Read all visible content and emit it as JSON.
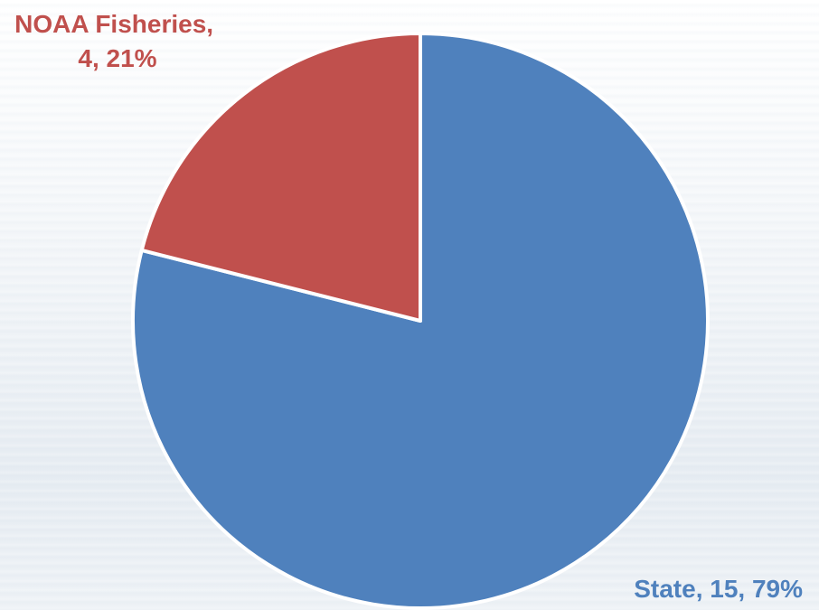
{
  "chart_data": {
    "type": "pie",
    "title": "",
    "slices": [
      {
        "category": "State",
        "value": 15,
        "percent": "79%",
        "label_line1": "State, 15, 79%",
        "color": "#4F81BD",
        "label_color": "#4F81BD"
      },
      {
        "category": "NOAA Fisheries",
        "value": 4,
        "percent": "21%",
        "label_line1": "NOAA Fisheries,",
        "label_line2": "4, 21%",
        "color": "#C0504D",
        "label_color": "#C0504D"
      }
    ],
    "start_angle": "12 o'clock, clockwise",
    "legend": "none"
  }
}
